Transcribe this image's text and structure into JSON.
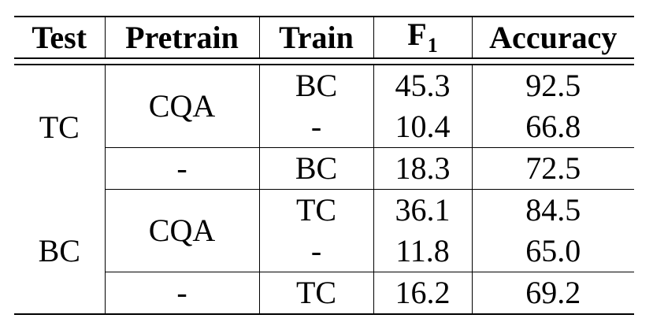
{
  "table": {
    "headers": {
      "test": "Test",
      "pretrain": "Pretrain",
      "train": "Train",
      "f1_main": "F",
      "f1_sub": "1",
      "accuracy": "Accuracy"
    },
    "groups": [
      {
        "test": "TC",
        "rows": [
          {
            "pretrain": "CQA",
            "train": "BC",
            "f1": "45.3",
            "accuracy": "92.5"
          },
          {
            "pretrain": "CQA",
            "train": "-",
            "f1": "10.4",
            "accuracy": "66.8"
          },
          {
            "pretrain": "-",
            "train": "BC",
            "f1": "18.3",
            "accuracy": "72.5"
          }
        ]
      },
      {
        "test": "BC",
        "rows": [
          {
            "pretrain": "CQA",
            "train": "TC",
            "f1": "36.1",
            "accuracy": "84.5"
          },
          {
            "pretrain": "CQA",
            "train": "-",
            "f1": "11.8",
            "accuracy": "65.0"
          },
          {
            "pretrain": "-",
            "train": "TC",
            "f1": "16.2",
            "accuracy": "69.2"
          }
        ]
      }
    ]
  }
}
